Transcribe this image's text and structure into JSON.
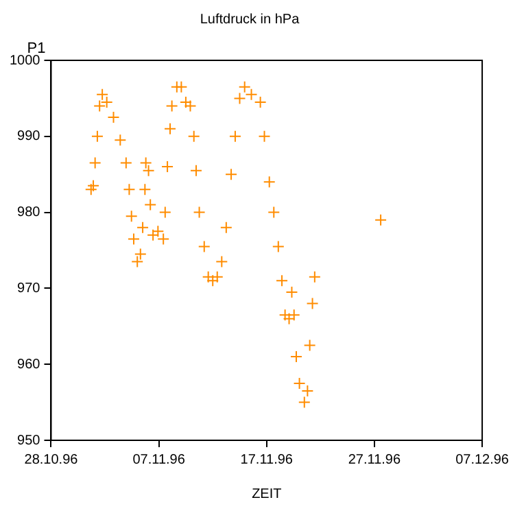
{
  "chart_data": {
    "type": "scatter",
    "title": "Luftdruck in hPa",
    "xlabel": "ZEIT",
    "ylabel": "P1",
    "marker": "cross",
    "grid": false,
    "legend": false,
    "xlim": [
      "1996-10-28",
      "1996-12-07"
    ],
    "xticks": [
      {
        "value": "1996-10-28",
        "label": "28.10.96"
      },
      {
        "value": "1996-11-07",
        "label": "07.11.96"
      },
      {
        "value": "1996-11-17",
        "label": "17.11.96"
      },
      {
        "value": "1996-11-27",
        "label": "27.11.96"
      },
      {
        "value": "1996-12-07",
        "label": "07.12.96"
      }
    ],
    "ylim": [
      950,
      1000
    ],
    "yticks": [
      950,
      960,
      970,
      980,
      990,
      1000
    ],
    "series": [
      {
        "color": "#ff8c00",
        "x": [
          "1996-10-31T17:00",
          "1996-10-31T22:00",
          "1996-11-01T02:00",
          "1996-11-01T07:00",
          "1996-11-01T12:00",
          "1996-11-01T18:00",
          "1996-11-02T04:00",
          "1996-11-02T19:00",
          "1996-11-03T10:00",
          "1996-11-03T23:00",
          "1996-11-04T06:00",
          "1996-11-04T11:00",
          "1996-11-04T16:00",
          "1996-11-05T00:00",
          "1996-11-05T07:00",
          "1996-11-05T12:00",
          "1996-11-05T17:00",
          "1996-11-05T19:00",
          "1996-11-06T01:00",
          "1996-11-06T05:00",
          "1996-11-06T11:00",
          "1996-11-06T22:00",
          "1996-11-07T10:00",
          "1996-11-07T14:00",
          "1996-11-07T19:00",
          "1996-11-08T01:00",
          "1996-11-08T05:00",
          "1996-11-08T16:00",
          "1996-11-09T02:00",
          "1996-11-09T12:00",
          "1996-11-09T22:00",
          "1996-11-10T06:00",
          "1996-11-10T11:00",
          "1996-11-10T18:00",
          "1996-11-11T05:00",
          "1996-11-11T14:00",
          "1996-11-12T00:00",
          "1996-11-12T10:00",
          "1996-11-12T20:00",
          "1996-11-13T06:00",
          "1996-11-13T17:00",
          "1996-11-14T02:00",
          "1996-11-14T12:00",
          "1996-11-14T23:00",
          "1996-11-15T14:00",
          "1996-11-16T10:00",
          "1996-11-16T19:00",
          "1996-11-17T06:00",
          "1996-11-17T16:00",
          "1996-11-18T02:00",
          "1996-11-18T10:00",
          "1996-11-18T17:00",
          "1996-11-19T02:00",
          "1996-11-19T08:00",
          "1996-11-19T13:00",
          "1996-11-19T18:00",
          "1996-11-20T01:00",
          "1996-11-20T12:00",
          "1996-11-20T19:00",
          "1996-11-21T00:00",
          "1996-11-21T06:00",
          "1996-11-21T11:00",
          "1996-11-27T14:00"
        ],
        "values": [
          983,
          983.5,
          986.5,
          990,
          994,
          995.5,
          994.5,
          992.5,
          989.5,
          986.5,
          983,
          979.5,
          976.5,
          973.5,
          974.5,
          978,
          983,
          986.5,
          985.5,
          981,
          977,
          977.5,
          976.5,
          980,
          986,
          991,
          994,
          996.5,
          996.5,
          994.5,
          994,
          990,
          985.5,
          980,
          975.5,
          971.5,
          971,
          971.5,
          973.5,
          978,
          985,
          990,
          995,
          996.5,
          995.5,
          994.5,
          990,
          984,
          980,
          975.5,
          971,
          966.5,
          966,
          969.5,
          966.5,
          961,
          957.5,
          955,
          956.5,
          962.5,
          968,
          971.5,
          979
        ]
      }
    ]
  }
}
